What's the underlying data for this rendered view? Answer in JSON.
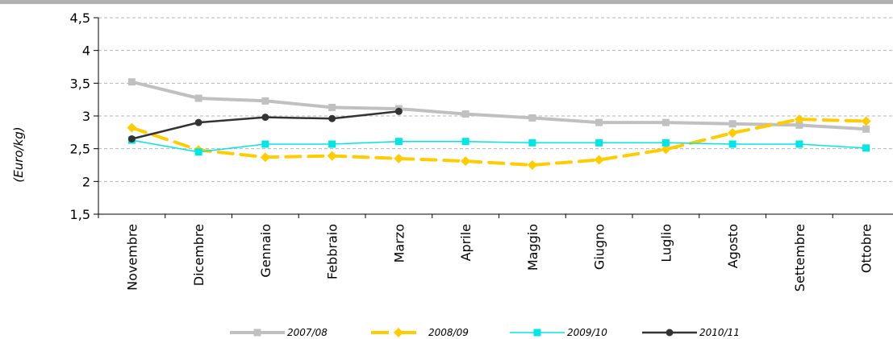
{
  "chart_data": {
    "type": "line",
    "ylabel": "(Euro/kg)",
    "ylim": [
      1.5,
      4.5
    ],
    "yticks": [
      "1,5",
      "2",
      "2,5",
      "3",
      "3,5",
      "4",
      "4,5"
    ],
    "ytick_values": [
      1.5,
      2,
      2.5,
      3,
      3.5,
      4,
      4.5
    ],
    "grid": "horizontal dashed",
    "legend_position": "bottom",
    "categories": [
      "Novembre",
      "Dicembre",
      "Gennaio",
      "Febbraio",
      "Marzo",
      "Aprile",
      "Maggio",
      "Giugno",
      "Luglio",
      "Agosto",
      "Settembre",
      "Ottobre"
    ],
    "series": [
      {
        "name": "2007/08",
        "color": "#c0c0c0",
        "style": "solid-thick",
        "marker": "square",
        "values": [
          3.52,
          3.27,
          3.23,
          3.13,
          3.11,
          3.03,
          2.97,
          2.9,
          2.9,
          2.88,
          2.86,
          2.8
        ]
      },
      {
        "name": "2008/09",
        "color": "#ffcc00",
        "style": "dashed-thick",
        "marker": "diamond",
        "values": [
          2.82,
          2.48,
          2.37,
          2.39,
          2.35,
          2.31,
          2.25,
          2.33,
          2.49,
          2.74,
          2.95,
          2.92
        ]
      },
      {
        "name": "2009/10",
        "color": "#00e6e6",
        "style": "solid-thin",
        "marker": "square",
        "values": [
          2.63,
          2.45,
          2.57,
          2.57,
          2.61,
          2.61,
          2.59,
          2.59,
          2.59,
          2.57,
          2.57,
          2.51
        ]
      },
      {
        "name": "2010/11",
        "color": "#333333",
        "style": "solid-medium",
        "marker": "circle",
        "values": [
          2.65,
          2.9,
          2.98,
          2.96,
          3.07,
          null,
          null,
          null,
          null,
          null,
          null,
          null
        ]
      }
    ]
  }
}
